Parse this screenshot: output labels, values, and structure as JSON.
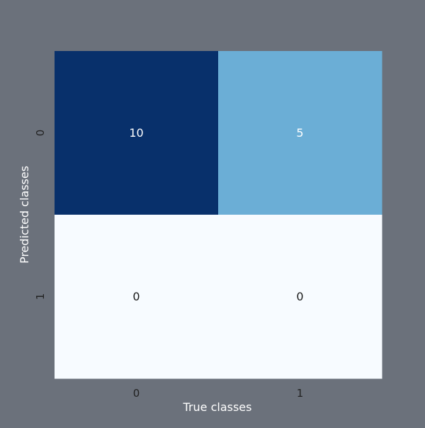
{
  "chart_data": {
    "type": "heatmap",
    "x_categories": [
      "0",
      "1"
    ],
    "y_categories": [
      "0",
      "1"
    ],
    "values": [
      [
        10,
        5
      ],
      [
        0,
        0
      ]
    ],
    "xlabel": "True classes",
    "ylabel": "Predicted classes",
    "colormap": "Blues",
    "vmin": 0,
    "vmax": 10,
    "annotations": true,
    "grid": false,
    "colorbar": false
  },
  "colors": {
    "background": "#6b717b",
    "text": "#ffffff",
    "tick_text": "#222222",
    "cell_text_dark": "#1a1a1a",
    "cell_text_light": "#ffffff",
    "cmap_low": "#f7fbff",
    "cmap_mid": "#6baed6",
    "cmap_high": "#08306b"
  }
}
